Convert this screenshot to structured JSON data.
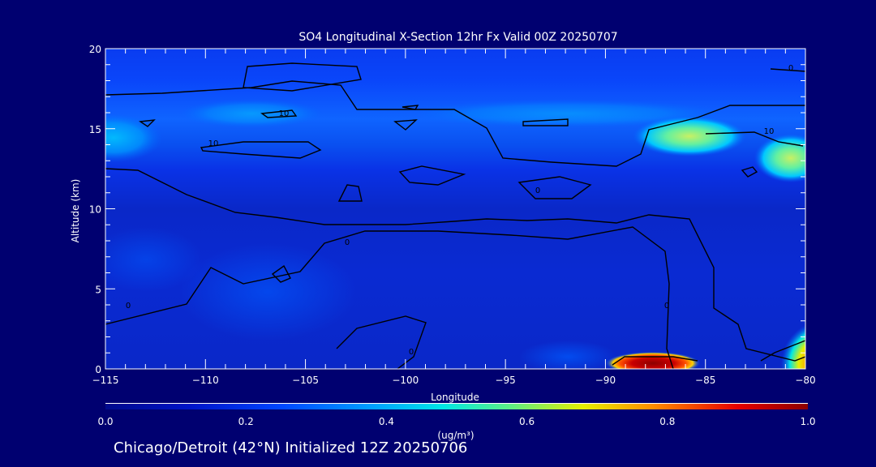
{
  "chart_data": {
    "type": "heatmap",
    "title": "SO4 Longitudinal X-Section 12hr  Fx Valid 00Z 20250707",
    "xlabel": "Longitude",
    "ylabel": "Altitude (km)",
    "xlim": [
      -115,
      -80
    ],
    "ylim": [
      0,
      20
    ],
    "x_ticks": [
      -115,
      -110,
      -105,
      -100,
      -95,
      -90,
      -85,
      -80
    ],
    "y_ticks": [
      0,
      5,
      10,
      15,
      20
    ],
    "colorbar": {
      "label": "(ug/m³)",
      "range": [
        0.0,
        1.0
      ],
      "ticks": [
        "0.0",
        "0.2",
        "0.4",
        "0.6",
        "0.8",
        "1.0"
      ],
      "colors": [
        "#000a8c",
        "#0014c8",
        "#0046ff",
        "#00a0ff",
        "#00e6e6",
        "#60f080",
        "#e6f000",
        "#ff8c00",
        "#e60000",
        "#8c0000"
      ]
    },
    "contour_levels": [
      0,
      10
    ],
    "contour_labels": [
      "0",
      "0",
      "0",
      "0",
      "10",
      "10",
      "10",
      "0",
      "0"
    ],
    "features": [
      {
        "lon": -87.5,
        "alt": 0.3,
        "value": 0.95
      },
      {
        "lon": -80.5,
        "alt": 1.2,
        "value": 0.8
      },
      {
        "lon": -84,
        "alt": 14.5,
        "value": 0.55
      },
      {
        "lon": -81,
        "alt": 13.0,
        "value": 0.6
      },
      {
        "lon": -114,
        "alt": 14.5,
        "value": 0.4
      }
    ]
  },
  "caption": "Chicago/Detroit (42°N) Initialized 12Z 20250706"
}
